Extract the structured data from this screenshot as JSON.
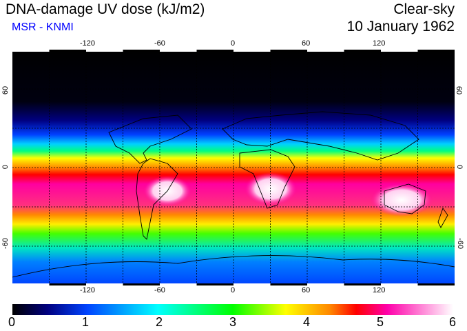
{
  "header": {
    "title": "DNA-damage UV dose (kJ/m2)",
    "subtitle": "MSR - KNMI",
    "product": "Clear-sky",
    "date": "10 January 1962"
  },
  "map": {
    "longitude_ticks": [
      "-120",
      "-60",
      "0",
      "60",
      "120"
    ],
    "latitude_ticks": [
      "60",
      "0",
      "-60"
    ],
    "gridlines": true,
    "colormap": [
      "#000000",
      "#0000a0",
      "#0044ff",
      "#00ffff",
      "#00ff00",
      "#ffff00",
      "#ff8800",
      "#ff0000",
      "#ff00aa",
      "#ffffff"
    ]
  },
  "colorbar": {
    "labels": [
      "0",
      "1",
      "2",
      "3",
      "4",
      "5",
      "6"
    ],
    "min": 0,
    "max": 6
  }
}
